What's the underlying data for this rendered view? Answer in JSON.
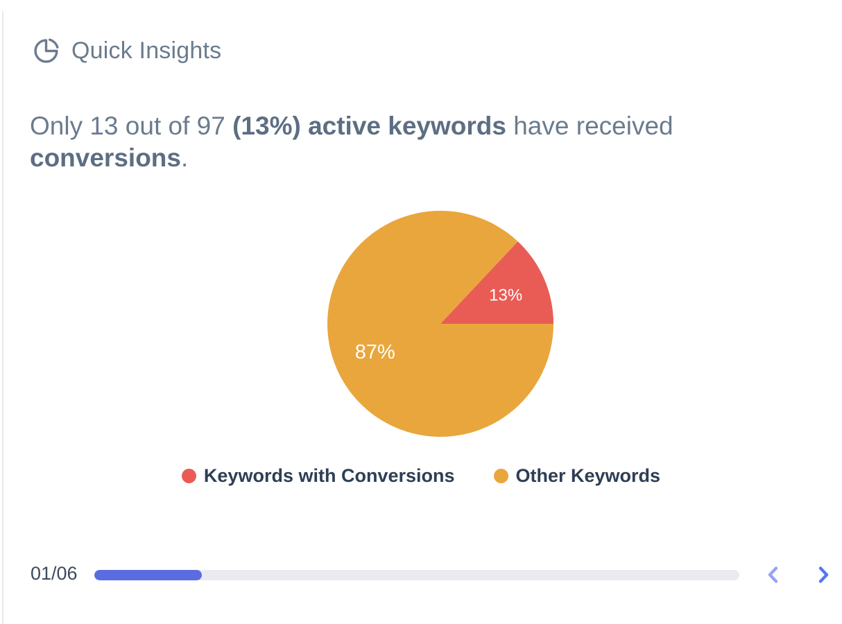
{
  "header": {
    "title": "Quick Insights"
  },
  "insight": {
    "prefix": "Only 13 out of 97 ",
    "highlight_keywords": "(13%) active keywords",
    "middle": " have received ",
    "highlight_conversions": "conversions",
    "suffix": "."
  },
  "chart_data": {
    "type": "pie",
    "title": "",
    "slices": [
      {
        "name": "Keywords with Conversions",
        "value": 13,
        "percent_label": "13%",
        "color": "#E85C55"
      },
      {
        "name": "Other Keywords",
        "value": 87,
        "percent_label": "87%",
        "color": "#E9A63C"
      }
    ],
    "layout": {
      "start_angle_deg": 46.8,
      "label_radius_ratio": 0.63,
      "label_font_sizes": [
        24,
        29
      ],
      "label_color": "#ffffff",
      "legend_position": "bottom"
    }
  },
  "pagination": {
    "label": "01/06",
    "current": 1,
    "total": 6
  },
  "colors": {
    "accent_blue": "#5b6ce1",
    "chevron_prev": "#98a3f3",
    "chevron_next": "#5577f0",
    "icon_gray": "#6b7b8e"
  }
}
